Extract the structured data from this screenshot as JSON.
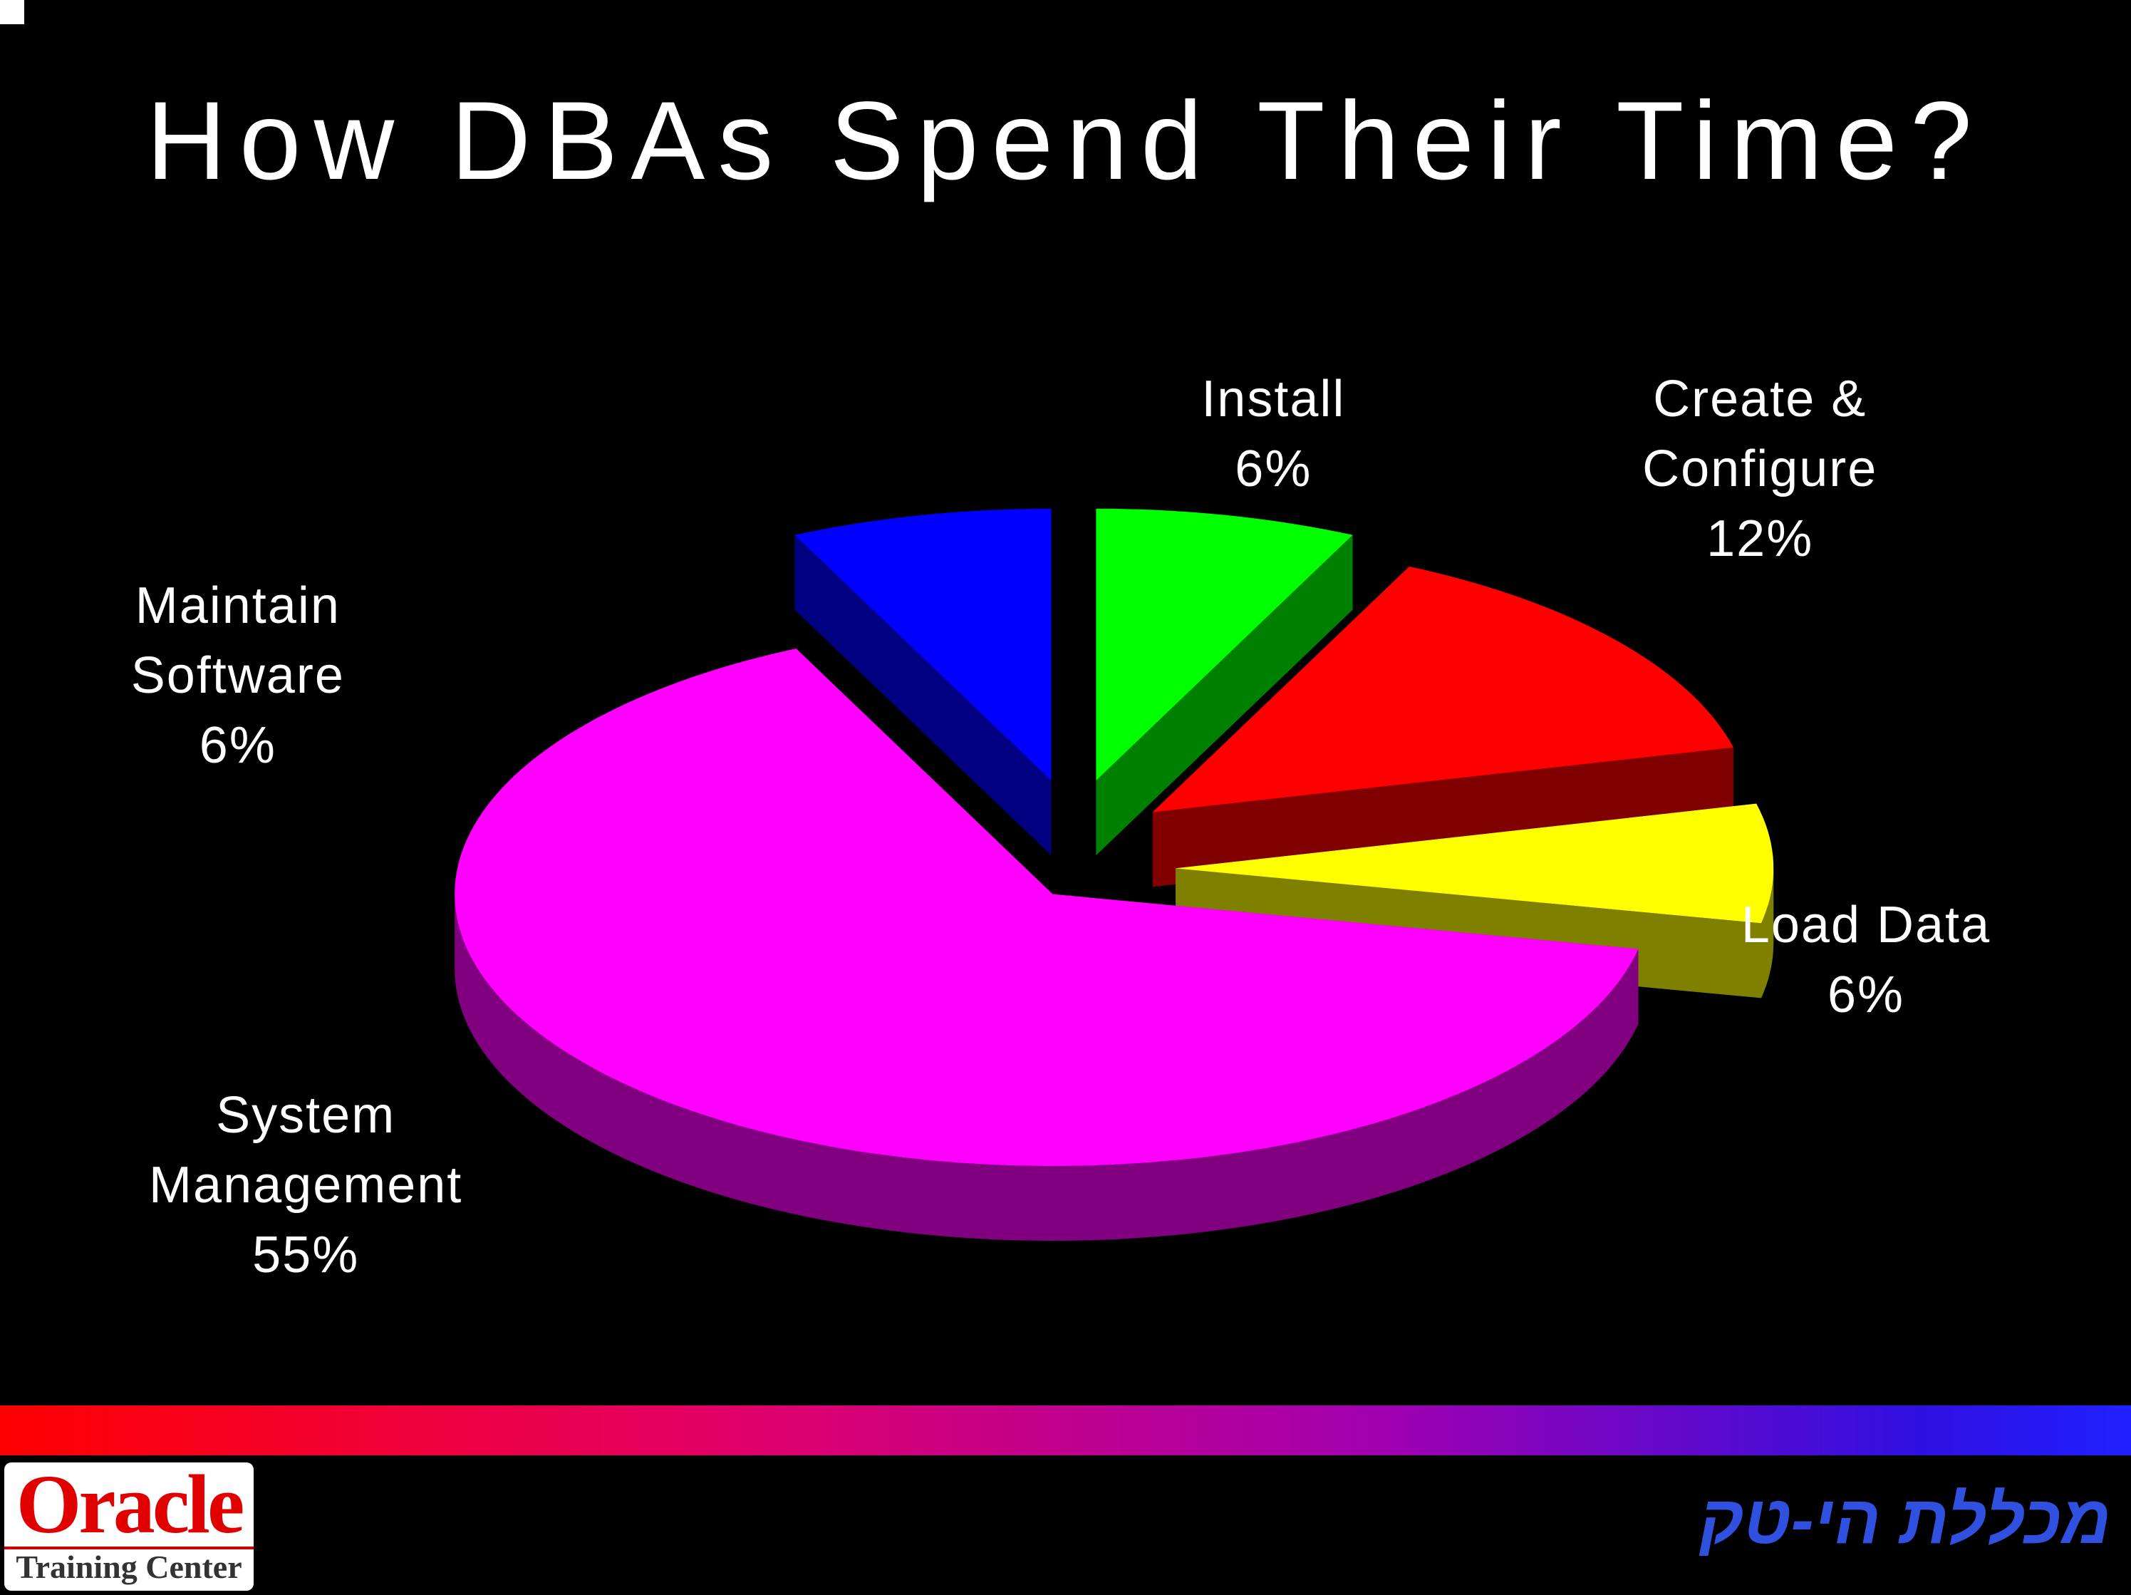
{
  "chart_data": {
    "type": "pie3d",
    "title": "How DBAs Spend Their Time?",
    "categories": [
      "Install",
      "Create & Configure",
      "Load Data",
      "System Management",
      "Maintain Software"
    ],
    "values": [
      6,
      12,
      6,
      55,
      6
    ],
    "value_labels": [
      "6%",
      "12%",
      "6%",
      "55%",
      "6%"
    ],
    "colors": [
      "#00ff00",
      "#ff0000",
      "#ffff00",
      "#ff00ff",
      "#0000ff"
    ]
  },
  "logos": {
    "oracle": "Oracle",
    "oracle_sub": "Training Center",
    "college": "מכללת הי-טק"
  }
}
